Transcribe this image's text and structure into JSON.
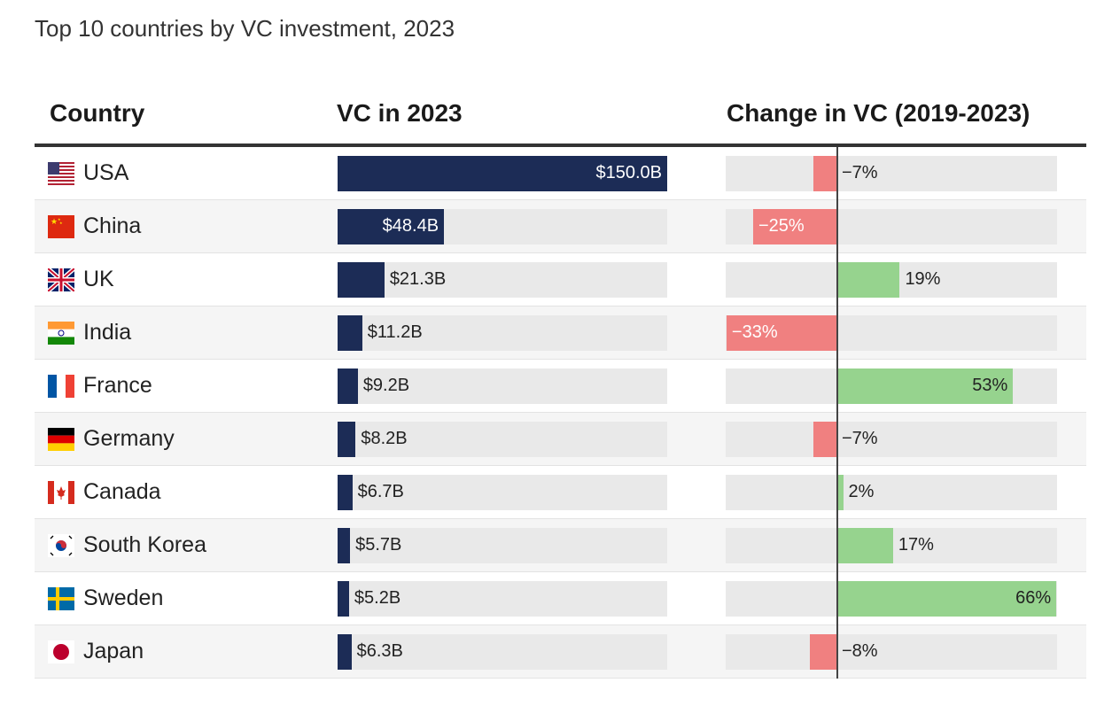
{
  "title": "Top 10 countries by VC investment, 2023",
  "headers": {
    "country": "Country",
    "vc": "VC in 2023",
    "change": "Change in VC (2019-2023)"
  },
  "colors": {
    "vc_bar": "#1c2c56",
    "positive": "#96d38e",
    "negative": "#f08080",
    "track": "#e9e9e9"
  },
  "chart_data": {
    "type": "table",
    "columns": [
      "Country",
      "VC in 2023",
      "Change in VC (2019-2023)"
    ],
    "vc_max": 150.0,
    "change_range": [
      -33,
      66
    ],
    "rows": [
      {
        "country": "USA",
        "flag": "usa-flag-icon",
        "vc": 150.0,
        "vc_label": "$150.0B",
        "change": -7,
        "change_label": "−7%"
      },
      {
        "country": "China",
        "flag": "china-flag-icon",
        "vc": 48.4,
        "vc_label": "$48.4B",
        "change": -25,
        "change_label": "−25%"
      },
      {
        "country": "UK",
        "flag": "uk-flag-icon",
        "vc": 21.3,
        "vc_label": "$21.3B",
        "change": 19,
        "change_label": "19%"
      },
      {
        "country": "India",
        "flag": "india-flag-icon",
        "vc": 11.2,
        "vc_label": "$11.2B",
        "change": -33,
        "change_label": "−33%"
      },
      {
        "country": "France",
        "flag": "france-flag-icon",
        "vc": 9.2,
        "vc_label": "$9.2B",
        "change": 53,
        "change_label": "53%"
      },
      {
        "country": "Germany",
        "flag": "germany-flag-icon",
        "vc": 8.2,
        "vc_label": "$8.2B",
        "change": -7,
        "change_label": "−7%"
      },
      {
        "country": "Canada",
        "flag": "canada-flag-icon",
        "vc": 6.7,
        "vc_label": "$6.7B",
        "change": 2,
        "change_label": "2%"
      },
      {
        "country": "South Korea",
        "flag": "south-korea-flag-icon",
        "vc": 5.7,
        "vc_label": "$5.7B",
        "change": 17,
        "change_label": "17%"
      },
      {
        "country": "Sweden",
        "flag": "sweden-flag-icon",
        "vc": 5.2,
        "vc_label": "$5.2B",
        "change": 66,
        "change_label": "66%"
      },
      {
        "country": "Japan",
        "flag": "japan-flag-icon",
        "vc": 6.3,
        "vc_label": "$6.3B",
        "change": -8,
        "change_label": "−8%"
      }
    ]
  }
}
